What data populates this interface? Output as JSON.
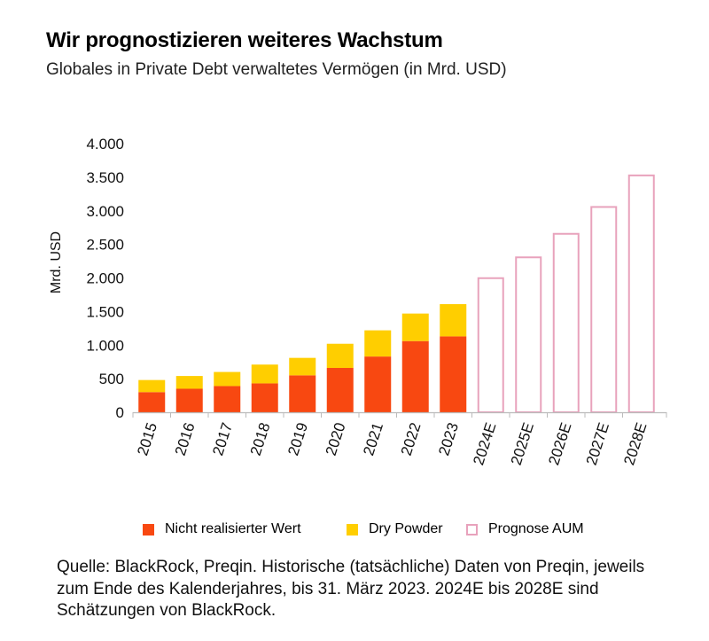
{
  "title": "Wir prognostizieren weiteres Wachstum",
  "subtitle": "Globales in Private Debt verwaltetes Vermögen (in Mrd. USD)",
  "chart_data": {
    "type": "bar",
    "stacked": true,
    "ylabel": "Mrd. USD",
    "xlabel": "",
    "ylim": [
      0,
      4000
    ],
    "yticks": [
      0,
      500,
      1000,
      1500,
      2000,
      2500,
      3000,
      3500,
      4000
    ],
    "ytick_labels": [
      "0",
      "500",
      "1.000",
      "1.500",
      "2.000",
      "2.500",
      "3.000",
      "3.500",
      "4.000"
    ],
    "categories": [
      "2015",
      "2016",
      "2017",
      "2018",
      "2019",
      "2020",
      "2021",
      "2022",
      "2023",
      "2024E",
      "2025E",
      "2026E",
      "2027E",
      "2028E"
    ],
    "series": [
      {
        "name": "Nicht realisierter Wert",
        "color": "#f84811",
        "style": "filled",
        "values": [
          300,
          350,
          390,
          430,
          550,
          660,
          830,
          1060,
          1130,
          null,
          null,
          null,
          null,
          null
        ]
      },
      {
        "name": "Dry Powder",
        "color": "#ffce00",
        "style": "filled",
        "values": [
          180,
          190,
          210,
          280,
          260,
          360,
          390,
          410,
          480,
          null,
          null,
          null,
          null,
          null
        ]
      },
      {
        "name": "Prognose AUM",
        "color": "#e8a2bc",
        "style": "outline",
        "values": [
          null,
          null,
          null,
          null,
          null,
          null,
          null,
          null,
          null,
          2010,
          2320,
          2670,
          3070,
          3540
        ]
      }
    ],
    "legend_position": "bottom"
  },
  "source": "Quelle: BlackRock, Preqin. Historische (tatsächliche) Daten von Preqin, jeweils zum Ende des Kalenderjahres, bis 31. März 2023. 2024E bis 2028E sind Schätzungen von BlackRock."
}
